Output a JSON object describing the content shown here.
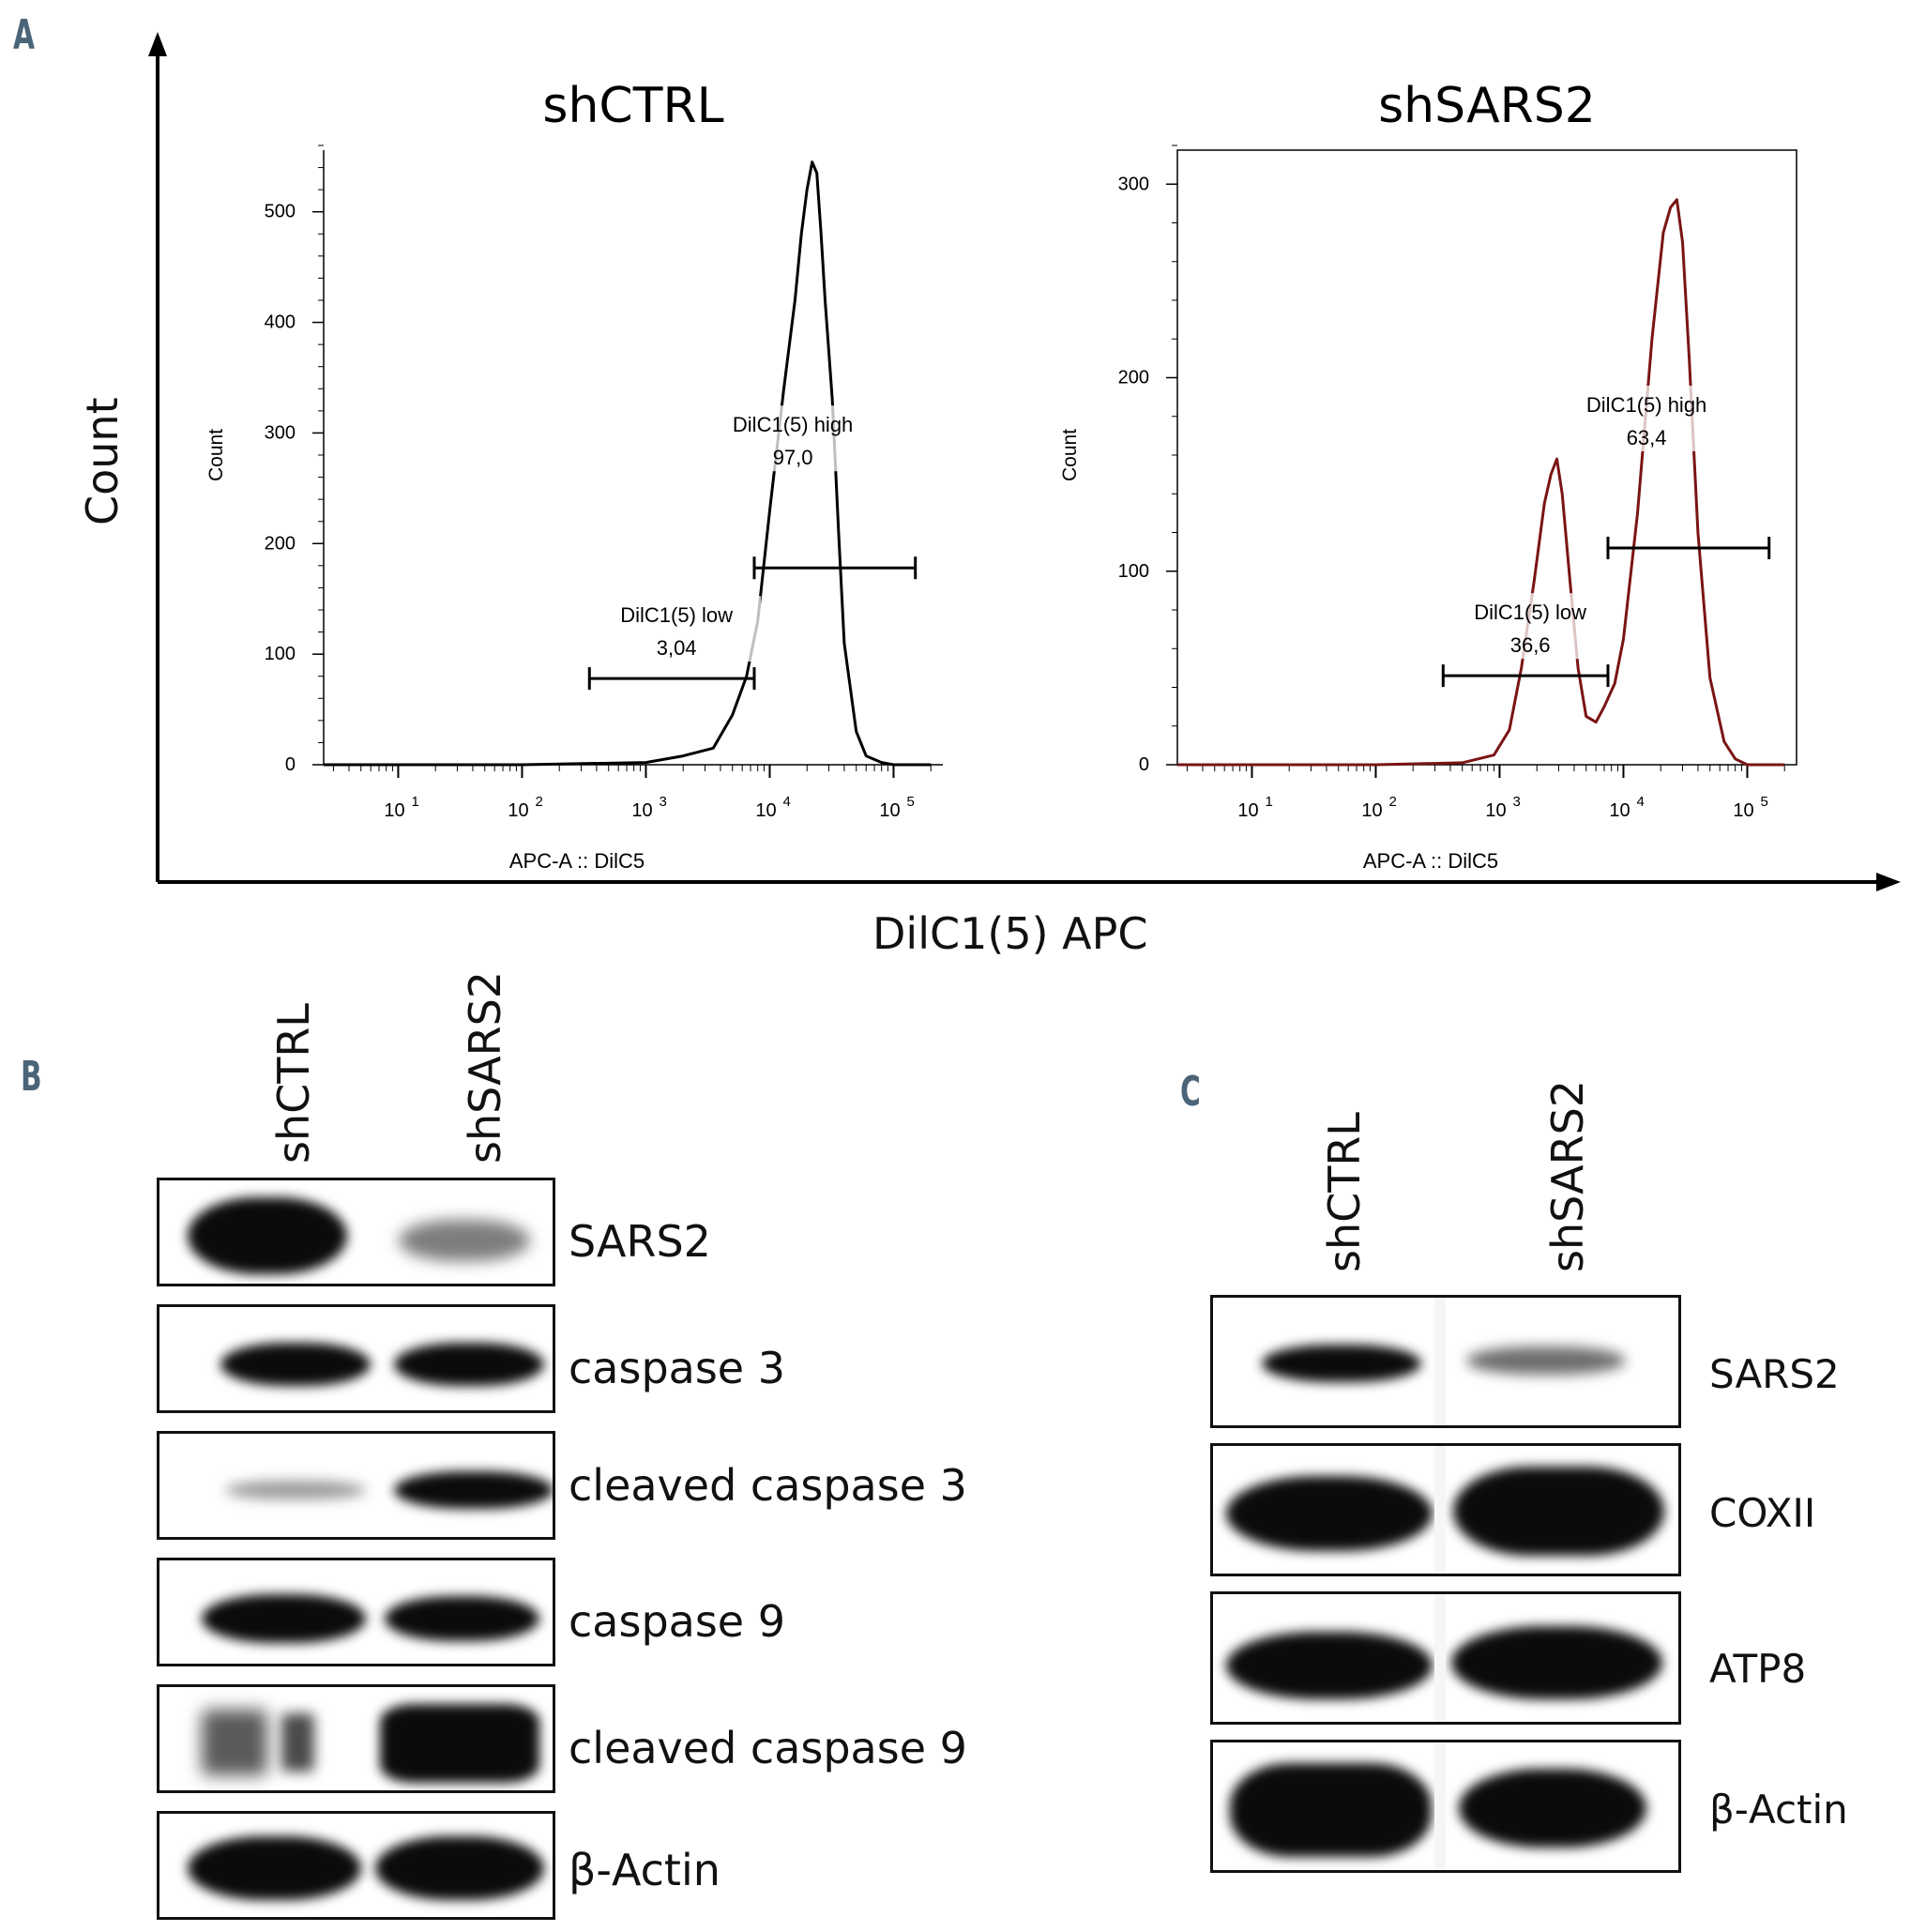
{
  "panels": {
    "A": "A",
    "B": "B",
    "C": "C"
  },
  "panel_a": {
    "outer_ylabel": "Count",
    "outer_xlabel": "DilC1(5) APC"
  },
  "chart_data": [
    {
      "type": "line",
      "title": "shCTRL",
      "xlabel": "APC-A :: DilC5",
      "ylabel": "Count",
      "x_scale": "log",
      "xlim": [
        2.5,
        250000
      ],
      "ylim": [
        0,
        560
      ],
      "yticks": [
        0,
        100,
        200,
        300,
        400,
        500
      ],
      "xtick_labels": [
        "10 1",
        "10 2",
        "10 3",
        "10 4",
        "10 5"
      ],
      "line_color": "#000000",
      "series": [
        {
          "x": [
            2.5,
            100,
            1000,
            2000,
            3500,
            5000,
            6500,
            8000,
            10000,
            13000,
            16000,
            18000,
            20000,
            22000,
            24000,
            26000,
            28000,
            32000,
            36000,
            40000,
            50000,
            60000,
            80000,
            100000,
            200000
          ],
          "y": [
            0,
            0,
            2,
            8,
            15,
            45,
            80,
            130,
            230,
            340,
            420,
            480,
            520,
            545,
            535,
            480,
            420,
            330,
            210,
            110,
            30,
            8,
            2,
            0,
            0
          ]
        }
      ],
      "gates": [
        {
          "name": "DilC1(5) low",
          "value": "3,04",
          "range": [
            350,
            7500
          ],
          "y": 78
        },
        {
          "name": "DilC1(5)  high",
          "value": "97,0",
          "range": [
            7500,
            150000
          ],
          "y": 178
        }
      ]
    },
    {
      "type": "line",
      "title": "shSARS2",
      "xlabel": "APC-A :: DilC5",
      "ylabel": "Count",
      "x_scale": "log",
      "xlim": [
        2.5,
        250000
      ],
      "ylim": [
        0,
        320
      ],
      "yticks": [
        0,
        100,
        200,
        300
      ],
      "xtick_labels": [
        "10 1",
        "10 2",
        "10 3",
        "10 4",
        "10 5"
      ],
      "line_color": "#7a1414",
      "series": [
        {
          "x": [
            2.5,
            100,
            500,
            900,
            1200,
            1500,
            1900,
            2300,
            2600,
            2900,
            3200,
            3700,
            4300,
            5000,
            6000,
            7000,
            8500,
            10000,
            13000,
            17000,
            21000,
            24000,
            27000,
            30000,
            34000,
            40000,
            50000,
            65000,
            80000,
            100000,
            200000
          ],
          "y": [
            0,
            0,
            1,
            5,
            18,
            50,
            95,
            135,
            150,
            158,
            140,
            95,
            50,
            25,
            22,
            30,
            42,
            65,
            130,
            220,
            275,
            288,
            292,
            270,
            210,
            120,
            45,
            12,
            3,
            0,
            0
          ]
        }
      ],
      "gates": [
        {
          "name": "DilC1(5) low",
          "value": "36,6",
          "range": [
            350,
            7500
          ],
          "y": 46
        },
        {
          "name": "DilC1(5)  high",
          "value": "63,4",
          "range": [
            7500,
            150000
          ],
          "y": 112
        }
      ]
    }
  ],
  "panel_b": {
    "lanes": [
      "shCTRL",
      "shSARS2"
    ],
    "rows": [
      {
        "label": "SARS2"
      },
      {
        "label": "caspase 3"
      },
      {
        "label": "cleaved caspase 3"
      },
      {
        "label": "caspase 9"
      },
      {
        "label": "cleaved caspase 9"
      },
      {
        "label": "β-Actin"
      }
    ]
  },
  "panel_c": {
    "lanes": [
      "shCTRL",
      "shSARS2"
    ],
    "rows": [
      {
        "label": "SARS2"
      },
      {
        "label": "COXII"
      },
      {
        "label": "ATP8"
      },
      {
        "label": "β-Actin"
      }
    ]
  }
}
